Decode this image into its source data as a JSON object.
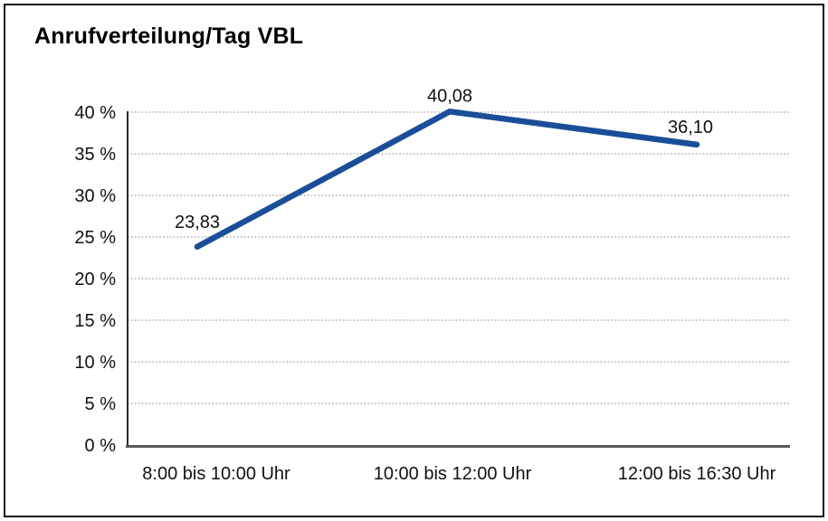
{
  "title": "Anrufverteilung/Tag VBL",
  "chart_data": {
    "type": "line",
    "title": "Anrufverteilung/Tag VBL",
    "categories": [
      "8:00 bis 10:00 Uhr",
      "10:00 bis 12:00 Uhr",
      "12:00 bis 16:30 Uhr"
    ],
    "series": [
      {
        "values": [
          23.83,
          40.08,
          36.1
        ]
      }
    ],
    "data_labels": [
      "23,83",
      "40,08",
      "36,10"
    ],
    "y_ticks": [
      "0 %",
      "5 %",
      "10 %",
      "15 %",
      "20 %",
      "25 %",
      "30 %",
      "35 %",
      "40 %"
    ],
    "xlabel": "",
    "ylabel": "",
    "ylim": [
      0,
      40
    ],
    "y_step": 5,
    "grid": "horizontal-dotted",
    "legend": "none",
    "line_color": "#1a4e98"
  }
}
